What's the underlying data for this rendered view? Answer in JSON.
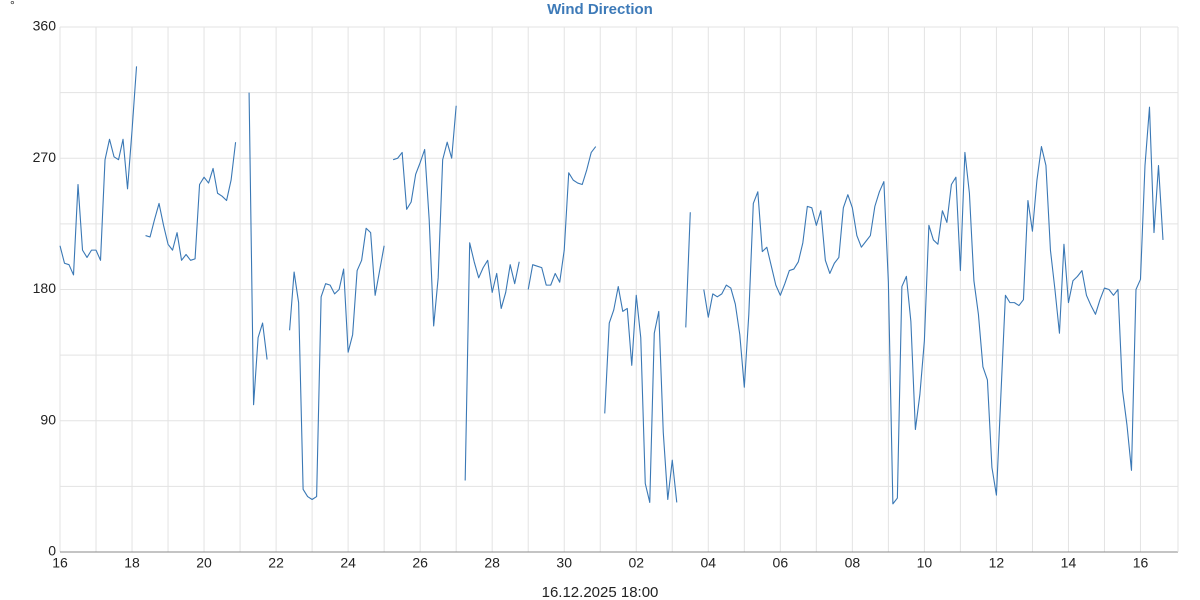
{
  "chart_data": {
    "type": "line",
    "title": "Wind Direction",
    "ylabel": "°",
    "xlabel": "16.12.2025 18:00",
    "x": [
      0,
      3,
      6,
      9,
      12,
      15,
      18,
      21,
      24,
      27,
      30,
      33,
      36,
      39,
      42,
      45,
      48,
      51,
      54,
      57,
      60,
      63,
      66,
      69,
      72,
      75,
      78,
      81,
      84,
      87,
      90,
      93,
      96,
      99,
      102,
      105,
      108,
      111,
      114,
      117,
      120,
      126,
      129,
      132,
      135,
      138,
      141,
      153,
      156,
      159,
      162,
      165,
      168,
      171,
      174,
      177,
      180,
      183,
      186,
      189,
      192,
      195,
      198,
      201,
      204,
      207,
      210,
      213,
      216,
      219,
      222,
      225,
      228,
      231,
      234,
      237,
      240,
      243,
      246,
      249,
      252,
      255,
      258,
      261,
      264,
      267,
      270,
      273,
      276,
      279,
      282,
      285,
      288,
      291,
      294,
      297,
      300,
      303,
      306,
      309,
      312,
      315,
      318,
      321,
      324,
      327,
      330,
      333,
      336,
      339,
      342,
      345,
      348,
      351,
      354,
      357,
      360,
      363,
      366,
      369,
      372,
      375,
      378,
      381,
      384,
      387,
      390,
      393,
      396,
      399,
      402,
      405,
      408,
      411,
      414,
      417,
      420,
      423,
      429,
      432,
      435,
      438,
      441,
      444,
      447,
      450,
      453,
      456,
      459,
      462,
      465,
      468,
      471,
      474,
      477,
      480,
      483,
      486,
      489,
      492,
      495,
      498,
      501,
      504,
      507,
      510,
      513,
      516,
      519,
      522,
      525,
      528,
      531,
      534,
      537,
      540,
      543,
      546,
      549,
      552,
      555,
      558,
      561,
      564,
      567,
      570,
      573,
      576,
      579,
      582,
      585,
      588,
      591,
      594,
      597,
      600,
      603,
      606,
      609,
      612,
      615,
      618,
      621,
      624,
      627,
      630,
      633,
      636,
      639,
      642,
      645,
      648,
      651,
      654,
      657,
      660,
      663,
      666,
      669,
      672,
      675,
      678,
      681,
      684,
      687,
      690,
      693,
      696,
      699,
      702,
      705,
      708,
      711,
      714,
      717,
      720,
      723,
      726,
      729,
      732,
      735
    ],
    "series": [
      {
        "name": "Wind Direction",
        "color": "#3a78b5",
        "values": [
          210,
          198,
          197,
          190,
          252,
          207,
          202,
          207,
          207,
          200,
          269,
          283,
          271,
          269,
          283,
          249,
          289,
          333,
          null,
          217,
          216,
          228,
          239,
          224,
          211,
          207,
          219,
          200,
          204,
          200,
          201,
          252,
          257,
          253,
          263,
          246,
          244,
          241,
          255,
          281,
          null,
          315,
          101,
          147,
          157,
          132,
          null,
          152,
          192,
          171,
          43,
          38,
          36,
          38,
          175,
          184,
          183,
          177,
          180,
          194,
          137,
          149,
          193,
          200,
          222,
          219,
          176,
          193,
          210,
          null,
          269,
          270,
          274,
          235,
          240,
          259,
          267,
          276,
          228,
          155,
          188,
          269,
          281,
          270,
          306,
          null,
          49,
          212,
          199,
          188,
          195,
          200,
          178,
          191,
          167,
          178,
          197,
          184,
          199,
          null,
          180,
          197,
          196,
          195,
          183,
          183,
          191,
          185,
          207,
          260,
          255,
          253,
          252,
          262,
          274,
          278,
          null,
          95,
          157,
          166,
          182,
          165,
          167,
          128,
          176,
          147,
          47,
          34,
          150,
          165,
          82,
          36,
          63,
          34,
          null,
          154,
          233,
          null,
          180,
          161,
          177,
          175,
          177,
          183,
          181,
          170,
          149,
          113,
          163,
          239,
          247,
          206,
          209,
          196,
          183,
          176,
          184,
          193,
          194,
          199,
          212,
          237,
          236,
          224,
          234,
          200,
          191,
          198,
          202,
          236,
          245,
          236,
          217,
          209,
          213,
          217,
          237,
          247,
          254,
          185,
          33,
          37,
          182,
          189,
          158,
          84,
          108,
          145,
          224,
          214,
          211,
          234,
          226,
          252,
          257,
          193,
          274,
          246,
          186,
          163,
          127,
          118,
          58,
          39,
          108,
          176,
          171,
          171,
          169,
          173,
          241,
          220,
          255,
          278,
          265,
          207,
          180,
          150,
          211,
          171,
          186,
          189,
          193,
          176,
          169,
          163,
          173,
          181,
          180,
          176,
          180,
          111,
          87,
          56,
          180,
          187,
          265,
          305,
          219,
          265,
          214
        ]
      }
    ],
    "xlim": [
      0,
      745
    ],
    "xticks": [
      {
        "value": 0,
        "label": "16"
      },
      {
        "value": 48,
        "label": "18"
      },
      {
        "value": 96,
        "label": "20"
      },
      {
        "value": 144,
        "label": "22"
      },
      {
        "value": 192,
        "label": "24"
      },
      {
        "value": 240,
        "label": "26"
      },
      {
        "value": 288,
        "label": "28"
      },
      {
        "value": 336,
        "label": "30"
      },
      {
        "value": 384,
        "label": "02"
      },
      {
        "value": 432,
        "label": "04"
      },
      {
        "value": 480,
        "label": "06"
      },
      {
        "value": 528,
        "label": "08"
      },
      {
        "value": 576,
        "label": "10"
      },
      {
        "value": 624,
        "label": "12"
      },
      {
        "value": 672,
        "label": "14"
      },
      {
        "value": 720,
        "label": "16"
      }
    ],
    "xminor": [
      24,
      72,
      120,
      168,
      216,
      264,
      312,
      360,
      408,
      456,
      504,
      552,
      600,
      648,
      696
    ],
    "ylim": [
      0,
      360
    ],
    "yticks": [
      0,
      90,
      180,
      270,
      360
    ],
    "yminor": [
      45,
      135,
      225,
      315
    ],
    "grid": true
  }
}
